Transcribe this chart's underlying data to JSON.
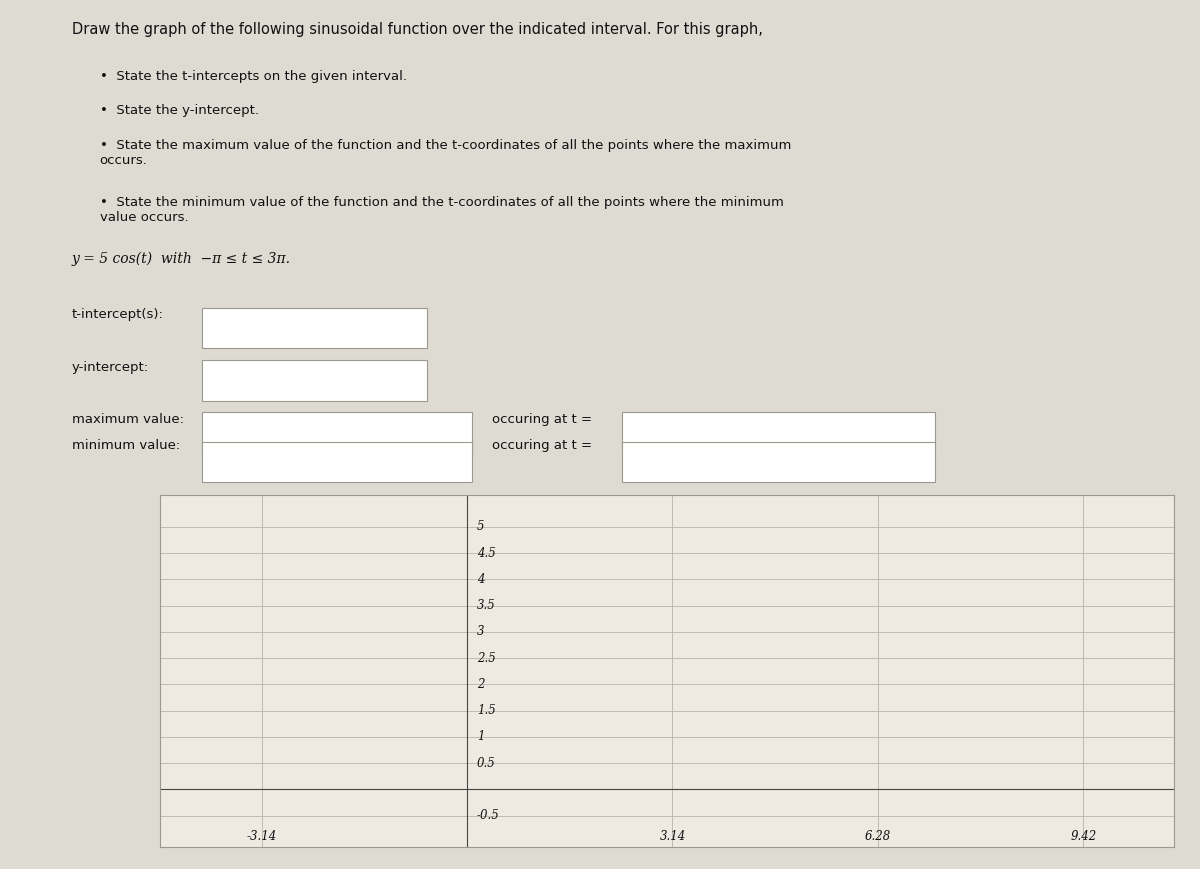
{
  "title_text": "Draw the graph of the following sinusoidal function over the indicated interval. For this graph,",
  "bullet1": "State the t-intercepts on the given interval.",
  "bullet2": "State the y-intercept.",
  "bullet3": "State the maximum value of the function and the t-coordinates of all the points where the maximum\noccurs.",
  "bullet4": "State the minimum value of the function and the t-coordinates of all the points where the minimum\nvalue occurs.",
  "equation": "y = 5 cos(t)  with  −π ≤ t ≤ 3π.",
  "t_intercept_label": "t-intercept(s):",
  "y_intercept_label": "y-intercept:",
  "max_value_label": "maximum value:",
  "min_value_label": "minimum value:",
  "occuring_at_label": "occuring at t =",
  "x_ticks": [
    -3.14,
    0.0,
    3.14,
    6.28,
    9.42
  ],
  "x_tick_labels_outside": [
    "-3.14"
  ],
  "x_tick_vals_outside": [
    -3.14
  ],
  "x_tick_labels_below": [
    "3.14",
    "6.28",
    "9.42"
  ],
  "x_tick_vals_below": [
    3.14,
    6.28,
    9.42
  ],
  "y_ticks": [
    -0.5,
    0.5,
    1.0,
    1.5,
    2.0,
    2.5,
    3.0,
    3.5,
    4.0,
    4.5,
    5.0
  ],
  "y_tick_labels": [
    "-0.5",
    "0.5",
    "1",
    "1.5",
    "2",
    "2.5",
    "3",
    "3.5",
    "4",
    "4.5",
    "5"
  ],
  "xlim": [
    -4.7,
    10.8
  ],
  "ylim": [
    -1.1,
    5.6
  ],
  "bg_color": "#dedbd3",
  "grid_bg": "#eeeae2",
  "text_color": "#111111",
  "font_size_title": 10.5,
  "font_size_body": 9.5,
  "font_size_eq": 10,
  "font_size_axis": 8.5
}
